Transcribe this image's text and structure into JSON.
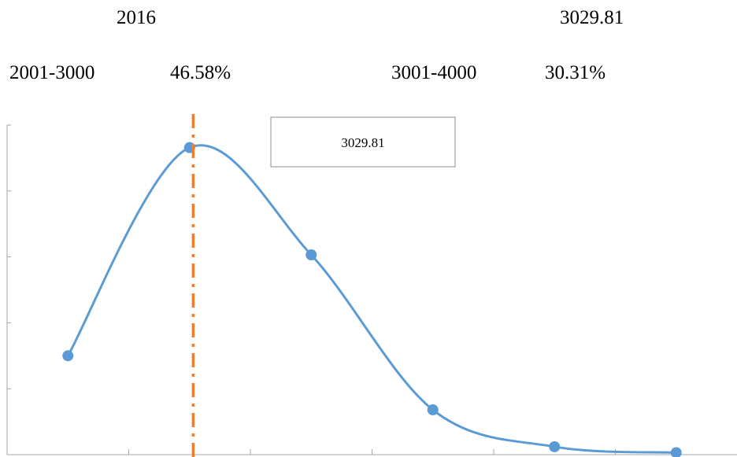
{
  "header": {
    "year": "2016",
    "mean_value": "3029.81",
    "range_1": "2001-3000",
    "range_1_pct": "46.58%",
    "range_2": "3001-4000",
    "range_2_pct": "30.31%"
  },
  "chart_data": {
    "type": "line",
    "title": "",
    "xlabel": "",
    "ylabel": "",
    "smooth": true,
    "grid": false,
    "x": [
      1,
      2,
      3,
      4,
      5,
      6
    ],
    "series": [
      {
        "values": [
          15.0,
          46.58,
          30.31,
          6.8,
          1.2,
          0.3
        ],
        "color": "#5b9bd5"
      }
    ],
    "xlim": [
      0.5,
      6.5
    ],
    "ylim": [
      0,
      50
    ],
    "reference_line": {
      "x": 2.03,
      "color": "#ed7d31",
      "style": "dash-dot"
    },
    "annotation": {
      "text": "3029.81"
    }
  }
}
